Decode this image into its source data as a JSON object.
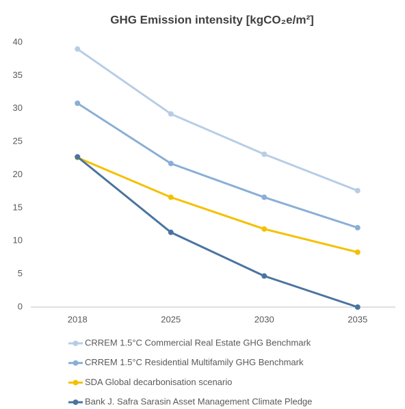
{
  "chart_data": {
    "type": "line",
    "title": "GHG Emission intensity [kgCO₂e/m²]",
    "categories": [
      "2018",
      "2025",
      "2030",
      "2035"
    ],
    "series": [
      {
        "name": "CRREM 1.5°C Commercial Real Estate GHG Benchmark",
        "color": "#b7cde6",
        "values": [
          39,
          29.2,
          23.1,
          17.6
        ]
      },
      {
        "name": "CRREM 1.5°C Residential Multifamily GHG Benchmark",
        "color": "#8aaed6",
        "values": [
          30.8,
          21.7,
          16.6,
          12.0
        ]
      },
      {
        "name": "SDA Global decarbonisation scenario",
        "color": "#f5c000",
        "values": [
          22.6,
          16.6,
          11.8,
          8.3
        ]
      },
      {
        "name": "Bank J. Safra Sarasin Asset Management Climate Pledge",
        "color": "#4a74a0",
        "values": [
          22.7,
          11.3,
          4.7,
          0
        ]
      }
    ],
    "ylim": [
      0,
      40
    ],
    "yticks": [
      0,
      5,
      10,
      15,
      20,
      25,
      30,
      35,
      40
    ],
    "grid": false,
    "legend": "bottom"
  }
}
